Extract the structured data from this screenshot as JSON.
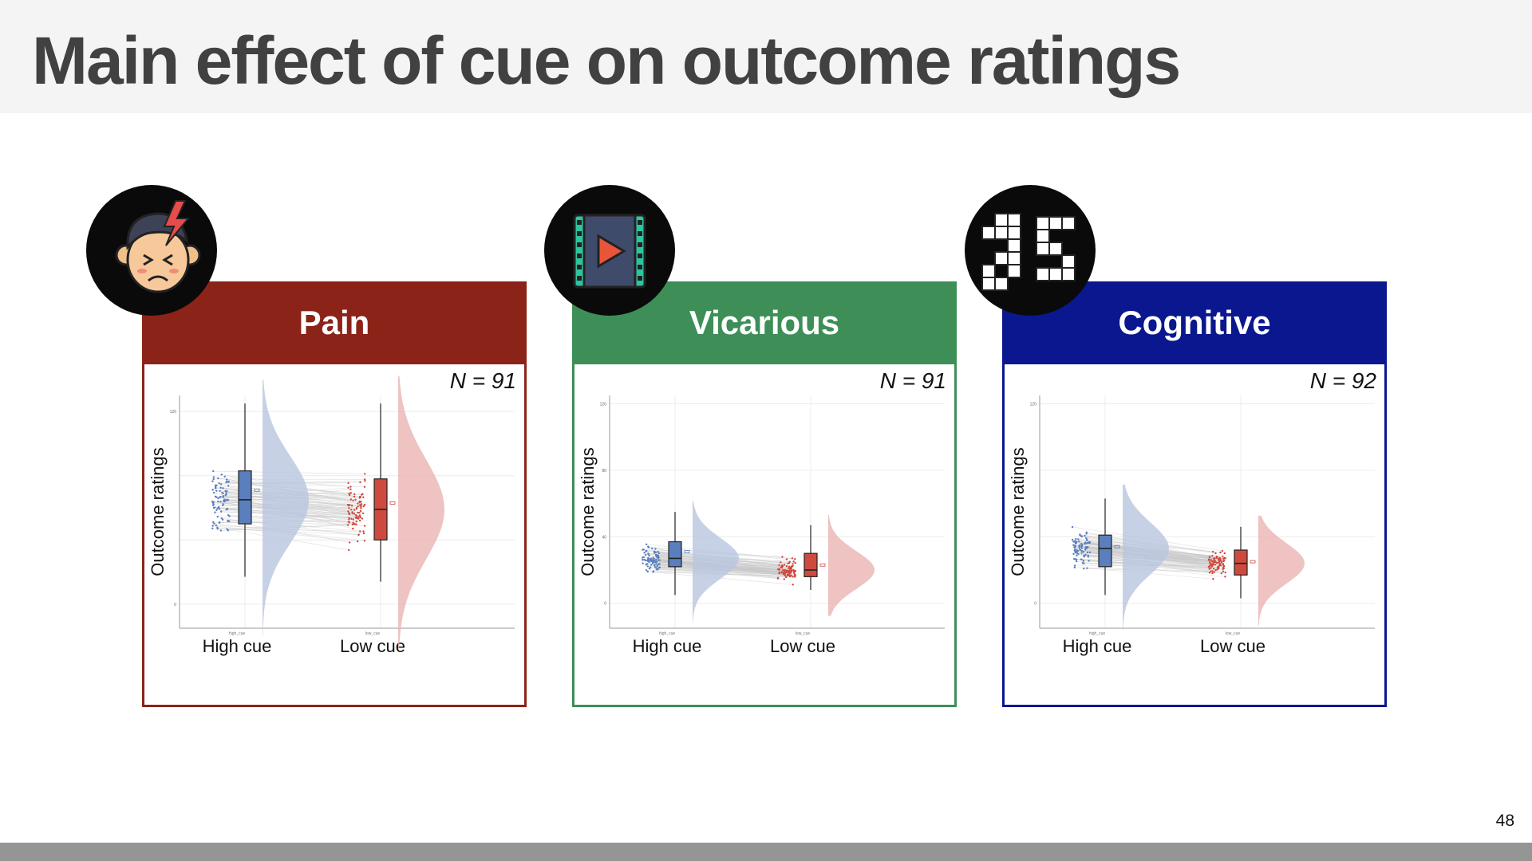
{
  "slide": {
    "title": "Main effect of cue on outcome ratings",
    "page_number": "48"
  },
  "panels": [
    {
      "title": "Pain",
      "n_label": "N = 91",
      "header_color": "#8b2318",
      "border_color": "#8b2318",
      "icon": "pain-face-icon"
    },
    {
      "title": "Vicarious",
      "n_label": "N = 91",
      "header_color": "#3d8e57",
      "border_color": "#3d8e57",
      "icon": "film-play-icon"
    },
    {
      "title": "Cognitive",
      "n_label": "N = 92",
      "header_color": "#0b178f",
      "border_color": "#0b178f",
      "icon": "rotated-blocks-icon"
    }
  ],
  "colors": {
    "high_cue": "#5b7fbd",
    "high_cue_fill": "#b9c6de",
    "low_cue": "#cf4a3e",
    "low_cue_fill": "#eab4b3"
  },
  "chart_data": [
    {
      "type": "raincloud",
      "ylabel": "Outcome ratings",
      "categories": [
        "High cue",
        "Low cue"
      ],
      "tick_labels_small": [
        "high_cue",
        "low_cue"
      ],
      "y_ticks": [
        "120",
        "",
        "",
        "0"
      ],
      "ylim": [
        -15,
        130
      ],
      "grid": true,
      "series": [
        {
          "category": "High cue",
          "median": 65,
          "q1": 50,
          "q3": 83,
          "whisker_low": 17,
          "whisker_high": 125,
          "mean": 71
        },
        {
          "category": "Low cue",
          "median": 59,
          "q1": 40,
          "q3": 78,
          "whisker_low": 14,
          "whisker_high": 125,
          "mean": 63
        }
      ]
    },
    {
      "type": "raincloud",
      "ylabel": "Outcome ratings",
      "categories": [
        "High cue",
        "Low cue"
      ],
      "tick_labels_small": [
        "high_cue",
        "low_cue"
      ],
      "y_ticks": [
        "120",
        "80",
        "40",
        "0"
      ],
      "ylim": [
        -15,
        125
      ],
      "grid": true,
      "series": [
        {
          "category": "High cue",
          "median": 27,
          "q1": 22,
          "q3": 37,
          "whisker_low": 5,
          "whisker_high": 55,
          "mean": 31
        },
        {
          "category": "Low cue",
          "median": 20,
          "q1": 16,
          "q3": 30,
          "whisker_low": 8,
          "whisker_high": 47,
          "mean": 23
        }
      ]
    },
    {
      "type": "raincloud",
      "ylabel": "Outcome ratings",
      "categories": [
        "High cue",
        "Low cue"
      ],
      "tick_labels_small": [
        "high_cue",
        "low_cue"
      ],
      "y_ticks": [
        "120",
        "",
        "",
        "0"
      ],
      "ylim": [
        -15,
        125
      ],
      "grid": true,
      "series": [
        {
          "category": "High cue",
          "median": 33,
          "q1": 22,
          "q3": 41,
          "whisker_low": 5,
          "whisker_high": 63,
          "mean": 34
        },
        {
          "category": "Low cue",
          "median": 24,
          "q1": 17,
          "q3": 32,
          "whisker_low": 3,
          "whisker_high": 46,
          "mean": 25
        }
      ]
    }
  ]
}
